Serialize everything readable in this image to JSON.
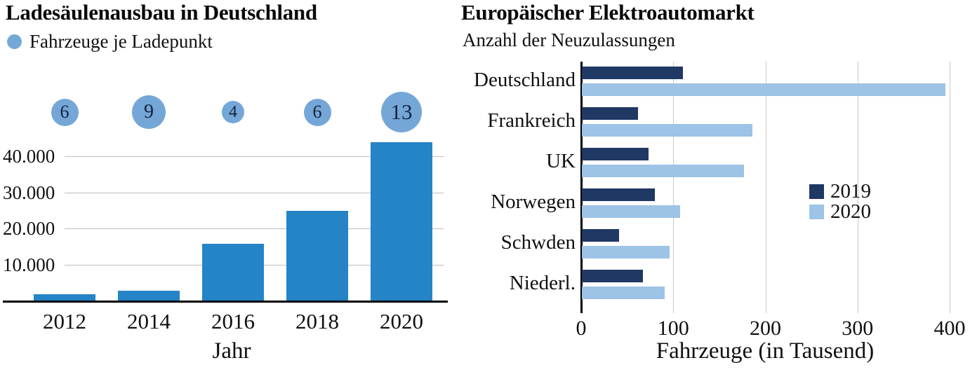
{
  "page": {
    "background": "#ffffff"
  },
  "chart_data": [
    {
      "type": "bar",
      "title": "Ladesäulenausbau in Deutschland",
      "legend_label": "Fahrzeuge je Ladepunkt",
      "xlabel": "Jahr",
      "categories": [
        "2012",
        "2014",
        "2016",
        "2018",
        "2020"
      ],
      "values": [
        2000,
        3000,
        16000,
        25000,
        44000
      ],
      "bubble_series": {
        "name": "Fahrzeuge je Ladepunkt",
        "values": [
          6,
          9,
          4,
          6,
          13
        ]
      },
      "y_ticks": [
        10000,
        20000,
        30000,
        40000
      ],
      "y_tick_labels": [
        "10.000",
        "20.000",
        "30.000",
        "40.000"
      ],
      "ylim": [
        0,
        45000
      ],
      "grid": "horizontal-gridlines",
      "legend_position": "top-left",
      "colors": {
        "bar": "#2484c6",
        "bubble": "#74a7d7",
        "bubble_text": "#16233f"
      }
    },
    {
      "type": "bar-horizontal-grouped",
      "title": "Europäischer Elektroautomarkt",
      "subtitle": "Anzahl der Neuzulassungen",
      "xlabel": "Fahrzeuge (in Tausend)",
      "categories": [
        "Deutschland",
        "Frankreich",
        "UK",
        "Norwegen",
        "Schwden",
        "Niederl."
      ],
      "series": [
        {
          "name": "2019",
          "color": "#1f3864",
          "values": [
            110,
            61,
            72,
            79,
            40,
            66
          ]
        },
        {
          "name": "2020",
          "color": "#9dc3e6",
          "values": [
            395,
            185,
            176,
            107,
            95,
            90
          ]
        }
      ],
      "x_ticks": [
        0,
        100,
        200,
        300,
        400
      ],
      "x_tick_labels": [
        "0",
        "100",
        "200",
        "300",
        "400"
      ],
      "xlim": [
        0,
        400
      ],
      "grid": "vertical-gridlines",
      "legend_position": "center-right"
    }
  ]
}
